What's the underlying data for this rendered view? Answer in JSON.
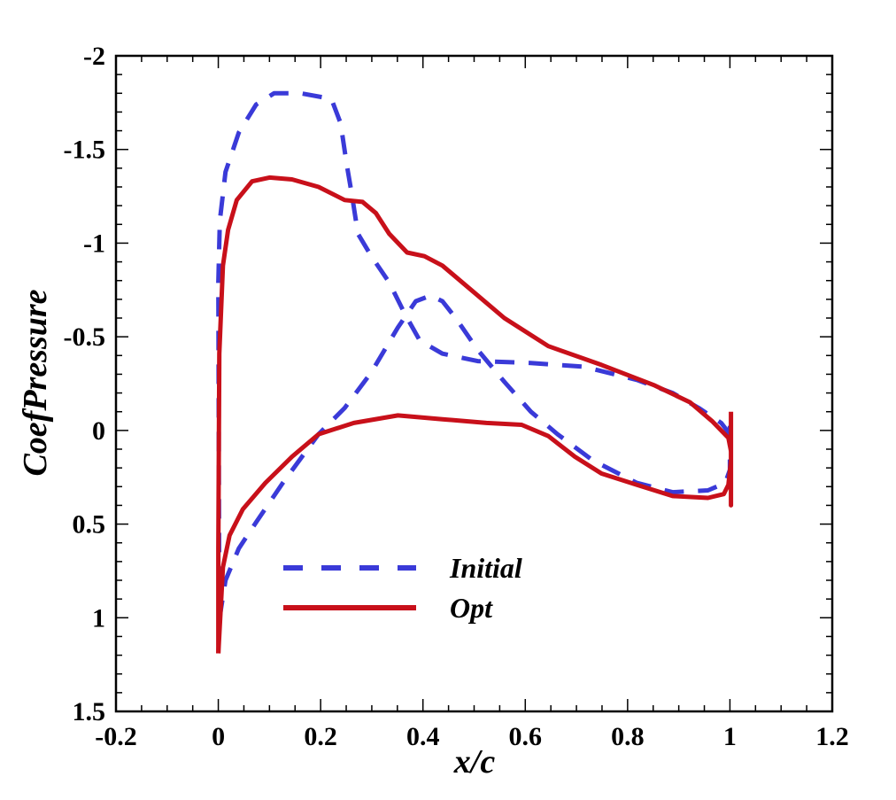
{
  "chart_data": {
    "type": "line",
    "title": "",
    "xlabel": "x/c",
    "ylabel": "CoefPressure",
    "xlim": [
      -0.2,
      1.2
    ],
    "ylim": [
      -2,
      1.5
    ],
    "y_inverted": true,
    "xticks": [
      -0.2,
      0,
      0.2,
      0.4,
      0.6,
      0.8,
      1,
      1.2
    ],
    "xtick_labels": [
      "-0.2",
      "0",
      "0.2",
      "0.4",
      "0.6",
      "0.8",
      "1",
      "1.2"
    ],
    "yticks": [
      -2,
      -1.5,
      -1,
      -0.5,
      0,
      0.5,
      1,
      1.5
    ],
    "ytick_labels": [
      "-2",
      "-1.5",
      "-1",
      "-0.5",
      "0",
      "0.5",
      "1",
      "1.5"
    ],
    "grid": false,
    "legend_position": "lower-center",
    "series": [
      {
        "name": "Initial",
        "color": "#3a3ad8",
        "style": "dashed",
        "segments": [
          [
            [
              0.002,
              1.01
            ],
            [
              0,
              -0.79
            ],
            [
              0.003,
              -1.12
            ],
            [
              0.014,
              -1.38
            ],
            [
              0.04,
              -1.59
            ],
            [
              0.074,
              -1.74
            ],
            [
              0.109,
              -1.8
            ],
            [
              0.161,
              -1.8
            ],
            [
              0.221,
              -1.77
            ],
            [
              0.239,
              -1.64
            ],
            [
              0.251,
              -1.42
            ],
            [
              0.261,
              -1.26
            ],
            [
              0.273,
              -1.05
            ],
            [
              0.299,
              -0.93
            ],
            [
              0.334,
              -0.79
            ],
            [
              0.365,
              -0.62
            ],
            [
              0.394,
              -0.48
            ],
            [
              0.438,
              -0.41
            ],
            [
              0.507,
              -0.37
            ],
            [
              0.611,
              -0.36
            ],
            [
              0.715,
              -0.34
            ],
            [
              0.818,
              -0.27
            ],
            [
              0.888,
              -0.2
            ],
            [
              0.939,
              -0.12
            ],
            [
              0.983,
              -0.04
            ],
            [
              1.0,
              0.02
            ]
          ],
          [
            [
              0.002,
              1.01
            ],
            [
              0.014,
              0.8
            ],
            [
              0.04,
              0.63
            ],
            [
              0.074,
              0.49
            ],
            [
              0.126,
              0.28
            ],
            [
              0.196,
              0.02
            ],
            [
              0.247,
              -0.12
            ],
            [
              0.299,
              -0.31
            ],
            [
              0.351,
              -0.55
            ],
            [
              0.386,
              -0.69
            ],
            [
              0.415,
              -0.72
            ],
            [
              0.438,
              -0.69
            ],
            [
              0.464,
              -0.6
            ],
            [
              0.507,
              -0.43
            ],
            [
              0.559,
              -0.26
            ],
            [
              0.611,
              -0.1
            ],
            [
              0.663,
              0.02
            ],
            [
              0.732,
              0.16
            ],
            [
              0.818,
              0.28
            ],
            [
              0.888,
              0.33
            ],
            [
              0.957,
              0.32
            ],
            [
              0.991,
              0.28
            ],
            [
              1.0,
              0.21
            ],
            [
              1.0,
              -0.1
            ]
          ]
        ]
      },
      {
        "name": "Opt",
        "color": "#c8101a",
        "style": "solid",
        "segments": [
          [
            [
              0,
              1.19
            ],
            [
              0,
              0.63
            ],
            [
              0.002,
              -0.41
            ],
            [
              0.009,
              -0.88
            ],
            [
              0.019,
              -1.07
            ],
            [
              0.036,
              -1.23
            ],
            [
              0.066,
              -1.33
            ],
            [
              0.1,
              -1.35
            ],
            [
              0.144,
              -1.34
            ],
            [
              0.196,
              -1.3
            ],
            [
              0.247,
              -1.23
            ],
            [
              0.282,
              -1.22
            ],
            [
              0.308,
              -1.16
            ],
            [
              0.334,
              -1.05
            ],
            [
              0.369,
              -0.95
            ],
            [
              0.403,
              -0.93
            ],
            [
              0.438,
              -0.88
            ],
            [
              0.49,
              -0.76
            ],
            [
              0.559,
              -0.6
            ],
            [
              0.645,
              -0.45
            ],
            [
              0.749,
              -0.35
            ],
            [
              0.853,
              -0.24
            ],
            [
              0.922,
              -0.15
            ],
            [
              0.965,
              -0.05
            ],
            [
              0.997,
              0.04
            ],
            [
              1.002,
              0.11
            ]
          ],
          [
            [
              0,
              1.19
            ],
            [
              0.009,
              0.73
            ],
            [
              0.022,
              0.56
            ],
            [
              0.048,
              0.42
            ],
            [
              0.092,
              0.28
            ],
            [
              0.144,
              0.14
            ],
            [
              0.196,
              0.02
            ],
            [
              0.265,
              -0.04
            ],
            [
              0.351,
              -0.08
            ],
            [
              0.438,
              -0.06
            ],
            [
              0.524,
              -0.04
            ],
            [
              0.593,
              -0.03
            ],
            [
              0.645,
              0.03
            ],
            [
              0.697,
              0.14
            ],
            [
              0.749,
              0.23
            ],
            [
              0.818,
              0.29
            ],
            [
              0.888,
              0.35
            ],
            [
              0.957,
              0.36
            ],
            [
              0.988,
              0.34
            ],
            [
              0.997,
              0.29
            ],
            [
              1.002,
              0.16
            ],
            [
              1.002,
              0.4
            ],
            [
              1.002,
              -0.1
            ]
          ]
        ]
      }
    ]
  }
}
